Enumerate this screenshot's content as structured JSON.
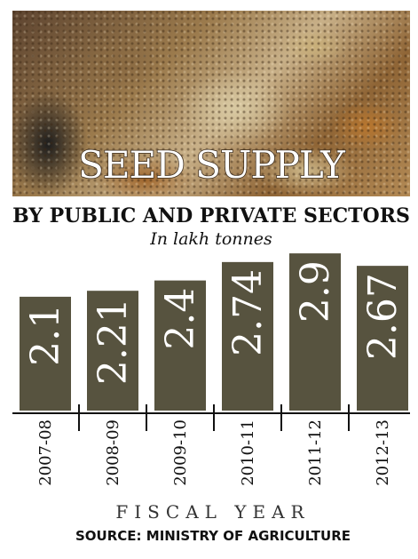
{
  "chart_data": {
    "type": "bar",
    "title": "SEED SUPPLY",
    "subtitle": "BY PUBLIC AND PRIVATE SECTORS",
    "unit": "In lakh tonnes",
    "xlabel": "FISCAL YEAR",
    "categories": [
      "2007-08",
      "2008-09",
      "2009-10",
      "2010-11",
      "2011-12",
      "2012-13"
    ],
    "values": [
      2.1,
      2.21,
      2.4,
      2.74,
      2.9,
      2.67
    ],
    "value_labels": [
      "2.1",
      "2.21",
      "2.4",
      "2.74",
      "2.9",
      "2.67"
    ],
    "bar_color": "#57533f",
    "source": "SOURCE: MINISTRY OF AGRICULTURE"
  }
}
